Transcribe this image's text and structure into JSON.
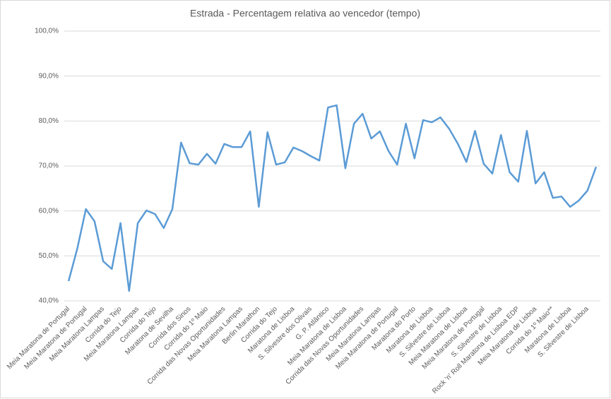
{
  "chart_data": {
    "type": "line",
    "title": "Estrada - Percentagem relativa ao vencedor (tempo)",
    "categories": [
      "Meia Maratona de Portugal",
      null,
      "Meia Maratona de Portugal",
      null,
      "Meia Maratona Lampas",
      null,
      "Corrida do Tejo",
      null,
      "Meia Maratona Lampas",
      null,
      "Corrida do Tejo",
      null,
      "Maratona de Sevilha",
      null,
      "Corrida dos Sinos",
      null,
      "Corrida do 1º Maio",
      null,
      "Corrida das Novas Oportunidades",
      null,
      "Meia Maratona Lampas",
      null,
      "Berlin Marathon",
      null,
      "Corrida do Tejo",
      null,
      "Maratona de Lisboa",
      null,
      "S. Silvestre dos Olivais",
      null,
      "G. P. Atlântico",
      null,
      "Meia Maratona de Lisboa",
      null,
      "Corrida das Novas Oportunidades",
      null,
      "Meia Maratona Lampas",
      null,
      "Meia Maratona de Portugal",
      null,
      "Maratona do Porto",
      null,
      "Maratona de Lisboa",
      null,
      "S. Silvestre de Lisboa",
      null,
      "Meia Maratona de Lisboa",
      null,
      "Meia Maratona de Portugal",
      null,
      "S. Silvestre de Lisboa",
      null,
      "Rock 'n' Roll Maratona de Lisboa EDP",
      null,
      "Meia Maratona de Lisboa",
      null,
      "Corrida do 1º Maio**",
      null,
      "Maratona de Lisboa",
      null,
      "S. Silvestre de Lisboa",
      null
    ],
    "series": [
      {
        "color": "#5b9bd5",
        "values": [
          44.4,
          51.6,
          60.4,
          57.7,
          48.8,
          47.1,
          57.3,
          42.2,
          57.3,
          60.1,
          59.3,
          56.2,
          60.4,
          75.2,
          70.6,
          70.3,
          72.7,
          70.5,
          74.9,
          74.2,
          74.2,
          77.7,
          60.9,
          77.5,
          70.3,
          70.8,
          74.1,
          73.3,
          72.2,
          71.2,
          83.0,
          83.5,
          69.5,
          79.4,
          81.6,
          76.1,
          77.7,
          73.3,
          70.3,
          79.4,
          71.7,
          80.2,
          79.7,
          80.8,
          78.3,
          75.0,
          70.9,
          77.8,
          70.5,
          68.3,
          76.9,
          68.6,
          66.5,
          77.8,
          66.1,
          68.6,
          62.9,
          63.2,
          60.9,
          62.3,
          64.5,
          69.8
        ]
      }
    ],
    "ylim": [
      40,
      100
    ],
    "yticks": [
      {
        "value": 40,
        "label": "40,0%"
      },
      {
        "value": 50,
        "label": "50,0%"
      },
      {
        "value": 60,
        "label": "60,0%"
      },
      {
        "value": 70,
        "label": "70,0%"
      },
      {
        "value": 80,
        "label": "80,0%"
      },
      {
        "value": 90,
        "label": "90,0%"
      },
      {
        "value": 100,
        "label": "100,0%"
      }
    ],
    "grid": true
  }
}
